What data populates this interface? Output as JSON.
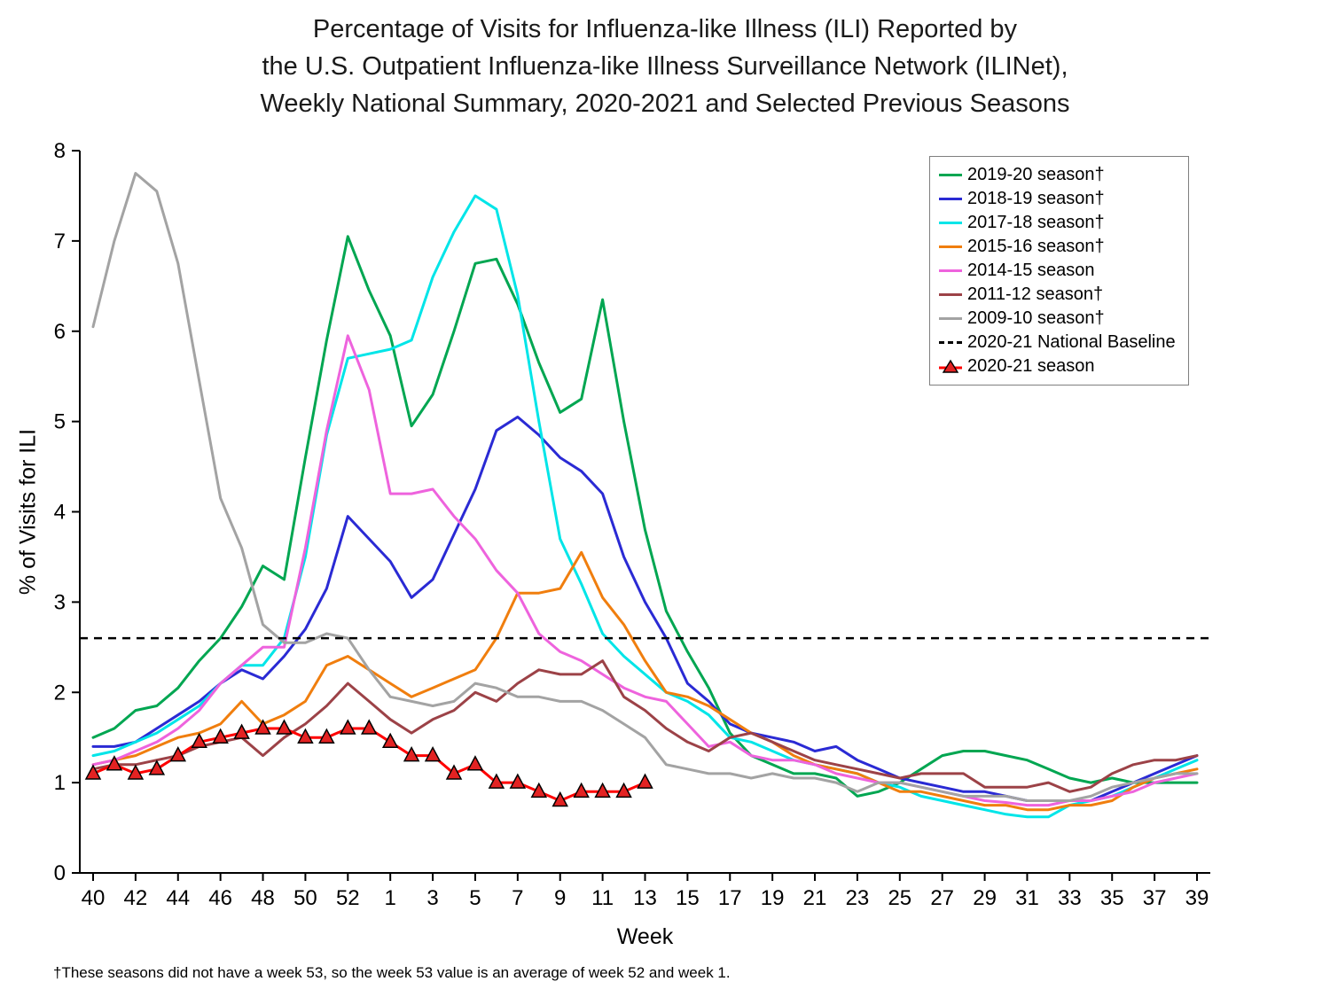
{
  "title_lines": [
    "Percentage of Visits for Influenza-like Illness (ILI) Reported by",
    "the U.S. Outpatient Influenza-like Illness Surveillance Network (ILINet),",
    "Weekly National Summary, 2020-2021 and Selected Previous Seasons"
  ],
  "footnote": "†These seasons did not have a week 53, so the week 53 value is an average of week 52 and week 1.",
  "legend": {
    "items": [
      {
        "label": "2019-20 season†",
        "color": "#00A651",
        "style": "solid"
      },
      {
        "label": "2018-19 season†",
        "color": "#2A2AD4",
        "style": "solid"
      },
      {
        "label": "2017-18 season†",
        "color": "#00E5E8",
        "style": "solid"
      },
      {
        "label": "2015-16 season†",
        "color": "#F07E0E",
        "style": "solid"
      },
      {
        "label": "2014-15 season",
        "color": "#EE63DD",
        "style": "solid"
      },
      {
        "label": "2011-12 season†",
        "color": "#9C4247",
        "style": "solid"
      },
      {
        "label": "2009-10 season†",
        "color": "#A3A3A3",
        "style": "solid"
      },
      {
        "label": "2020-21 National Baseline",
        "color": "#000000",
        "style": "dashed"
      },
      {
        "label": "2020-21 season",
        "color": "#FF0000",
        "style": "triangle"
      }
    ]
  },
  "chart_data": {
    "type": "line",
    "title": "Percentage of Visits for Influenza-like Illness (ILI) Reported by the U.S. Outpatient Influenza-like Illness Surveillance Network (ILINet), Weekly National Summary, 2020-2021 and Selected Previous Seasons",
    "xlabel": "Week",
    "ylabel": "% of Visits for ILI",
    "ylim": [
      0,
      8
    ],
    "yticks": [
      0,
      1,
      2,
      3,
      4,
      5,
      6,
      7,
      8
    ],
    "grid": false,
    "legend_position": "top-right",
    "x_week_sequence": [
      "40",
      "41",
      "42",
      "43",
      "44",
      "45",
      "46",
      "47",
      "48",
      "49",
      "50",
      "51",
      "52",
      "53",
      "1",
      "2",
      "3",
      "4",
      "5",
      "6",
      "7",
      "8",
      "9",
      "10",
      "11",
      "12",
      "13",
      "14",
      "15",
      "16",
      "17",
      "18",
      "19",
      "20",
      "21",
      "22",
      "23",
      "24",
      "25",
      "26",
      "27",
      "28",
      "29",
      "30",
      "31",
      "32",
      "33",
      "34",
      "35",
      "36",
      "37",
      "38",
      "39"
    ],
    "x_tick_labels": [
      "40",
      "42",
      "44",
      "46",
      "48",
      "50",
      "52",
      "1",
      "3",
      "5",
      "7",
      "9",
      "11",
      "13",
      "15",
      "17",
      "19",
      "21",
      "23",
      "25",
      "27",
      "29",
      "31",
      "33",
      "35",
      "37",
      "39"
    ],
    "baseline": {
      "name": "2020-21 National Baseline",
      "value": 2.6,
      "color": "#000000",
      "style": "dashed"
    },
    "series": [
      {
        "name": "2019-20 season†",
        "color": "#00A651",
        "marker": "none",
        "values": [
          1.5,
          1.6,
          1.8,
          1.85,
          2.05,
          2.35,
          2.6,
          2.95,
          3.4,
          3.25,
          4.6,
          5.9,
          7.05,
          6.45,
          5.95,
          4.95,
          5.3,
          6.0,
          6.75,
          6.8,
          6.3,
          5.65,
          5.1,
          5.25,
          6.35,
          5.0,
          3.8,
          2.9,
          2.45,
          2.05,
          1.55,
          1.3,
          1.2,
          1.1,
          1.1,
          1.05,
          0.85,
          0.9,
          1.0,
          1.15,
          1.3,
          1.35,
          1.35,
          1.3,
          1.25,
          1.15,
          1.05,
          1.0,
          1.05,
          1.0,
          1.0,
          1.0,
          1.0
        ]
      },
      {
        "name": "2018-19 season†",
        "color": "#2A2AD4",
        "marker": "none",
        "values": [
          1.4,
          1.4,
          1.45,
          1.6,
          1.75,
          1.9,
          2.1,
          2.25,
          2.15,
          2.4,
          2.7,
          3.15,
          3.95,
          3.7,
          3.45,
          3.05,
          3.25,
          3.75,
          4.25,
          4.9,
          5.05,
          4.85,
          4.6,
          4.45,
          4.2,
          3.5,
          3.0,
          2.6,
          2.1,
          1.9,
          1.65,
          1.55,
          1.5,
          1.45,
          1.35,
          1.4,
          1.25,
          1.15,
          1.05,
          1.0,
          0.95,
          0.9,
          0.9,
          0.85,
          0.8,
          0.8,
          0.8,
          0.8,
          0.9,
          1.0,
          1.1,
          1.2,
          1.3
        ]
      },
      {
        "name": "2017-18 season†",
        "color": "#00E5E8",
        "marker": "none",
        "values": [
          1.3,
          1.35,
          1.45,
          1.55,
          1.7,
          1.85,
          2.1,
          2.3,
          2.3,
          2.6,
          3.5,
          4.85,
          5.7,
          5.75,
          5.8,
          5.9,
          6.6,
          7.1,
          7.5,
          7.35,
          6.4,
          5.0,
          3.7,
          3.2,
          2.65,
          2.4,
          2.2,
          2.0,
          1.9,
          1.75,
          1.5,
          1.45,
          1.35,
          1.25,
          1.2,
          1.15,
          1.1,
          1.0,
          0.95,
          0.85,
          0.8,
          0.75,
          0.7,
          0.65,
          0.62,
          0.62,
          0.75,
          0.8,
          0.85,
          0.95,
          1.05,
          1.15,
          1.25
        ]
      },
      {
        "name": "2015-16 season†",
        "color": "#F07E0E",
        "marker": "none",
        "values": [
          1.2,
          1.25,
          1.3,
          1.4,
          1.5,
          1.55,
          1.65,
          1.9,
          1.65,
          1.75,
          1.9,
          2.3,
          2.4,
          2.25,
          2.1,
          1.95,
          2.05,
          2.15,
          2.25,
          2.6,
          3.1,
          3.1,
          3.15,
          3.55,
          3.05,
          2.75,
          2.35,
          2.0,
          1.95,
          1.85,
          1.7,
          1.55,
          1.45,
          1.3,
          1.2,
          1.15,
          1.1,
          1.0,
          0.9,
          0.9,
          0.85,
          0.8,
          0.75,
          0.75,
          0.7,
          0.7,
          0.75,
          0.75,
          0.8,
          0.95,
          1.05,
          1.1,
          1.15
        ]
      },
      {
        "name": "2014-15 season",
        "color": "#EE63DD",
        "marker": "none",
        "values": [
          1.2,
          1.25,
          1.35,
          1.45,
          1.6,
          1.8,
          2.1,
          2.3,
          2.5,
          2.5,
          3.6,
          4.9,
          5.95,
          5.35,
          4.2,
          4.2,
          4.25,
          3.95,
          3.7,
          3.35,
          3.1,
          2.65,
          2.45,
          2.35,
          2.2,
          2.05,
          1.95,
          1.9,
          1.65,
          1.4,
          1.45,
          1.3,
          1.25,
          1.25,
          1.2,
          1.1,
          1.05,
          1.0,
          1.0,
          0.95,
          0.9,
          0.85,
          0.8,
          0.78,
          0.75,
          0.75,
          0.8,
          0.8,
          0.85,
          0.9,
          1.0,
          1.05,
          1.1
        ]
      },
      {
        "name": "2011-12 season†",
        "color": "#9C4247",
        "marker": "none",
        "values": [
          1.15,
          1.2,
          1.2,
          1.25,
          1.3,
          1.4,
          1.45,
          1.5,
          1.3,
          1.5,
          1.65,
          1.85,
          2.1,
          1.9,
          1.7,
          1.55,
          1.7,
          1.8,
          2.0,
          1.9,
          2.1,
          2.25,
          2.2,
          2.2,
          2.35,
          1.95,
          1.8,
          1.6,
          1.45,
          1.35,
          1.5,
          1.55,
          1.45,
          1.35,
          1.25,
          1.2,
          1.15,
          1.1,
          1.05,
          1.1,
          1.1,
          1.1,
          0.95,
          0.95,
          0.95,
          1.0,
          0.9,
          0.95,
          1.1,
          1.2,
          1.25,
          1.25,
          1.3
        ]
      },
      {
        "name": "2009-10 season†",
        "color": "#A3A3A3",
        "marker": "none",
        "values": [
          6.05,
          7.0,
          7.75,
          7.55,
          6.75,
          5.45,
          4.15,
          3.6,
          2.75,
          2.55,
          2.55,
          2.65,
          2.6,
          2.25,
          1.95,
          1.9,
          1.85,
          1.9,
          2.1,
          2.05,
          1.95,
          1.95,
          1.9,
          1.9,
          1.8,
          1.65,
          1.5,
          1.2,
          1.15,
          1.1,
          1.1,
          1.05,
          1.1,
          1.05,
          1.05,
          1.0,
          0.9,
          1.0,
          1.0,
          0.95,
          0.9,
          0.85,
          0.85,
          0.85,
          0.8,
          0.8,
          0.8,
          0.85,
          0.95,
          1.0,
          1.05,
          1.1,
          1.1
        ]
      },
      {
        "name": "2020-21 season",
        "color": "#FF0000",
        "marker": "triangle",
        "marker_fill": "#E32222",
        "marker_stroke": "#000000",
        "values": [
          1.1,
          1.2,
          1.1,
          1.15,
          1.3,
          1.45,
          1.5,
          1.55,
          1.6,
          1.6,
          1.5,
          1.5,
          1.6,
          1.6,
          1.45,
          1.3,
          1.3,
          1.1,
          1.2,
          1.0,
          1.0,
          0.9,
          0.8,
          0.9,
          0.9,
          0.9,
          1.0,
          null,
          null,
          null,
          null,
          null,
          null,
          null,
          null,
          null,
          null,
          null,
          null,
          null,
          null,
          null,
          null,
          null,
          null,
          null,
          null,
          null,
          null,
          null,
          null,
          null,
          null
        ]
      }
    ]
  }
}
